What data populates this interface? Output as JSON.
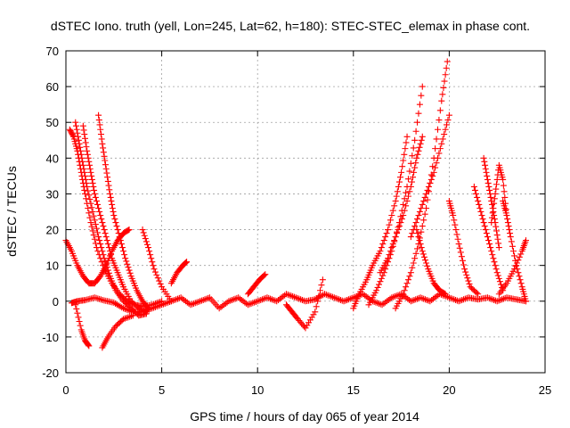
{
  "chart_data": {
    "type": "scatter",
    "title": "dSTEC Iono. truth (yell, Lon=245, Lat=62, h=180): STEC-STEC_elemax in phase cont.",
    "xlabel": "GPS time / hours of day 065 of year 2014",
    "ylabel": "dSTEC  / TECUs",
    "xlim": [
      0,
      25
    ],
    "ylim": [
      -20,
      70
    ],
    "xticks": [
      0,
      5,
      10,
      15,
      20,
      25
    ],
    "yticks": [
      -20,
      -10,
      0,
      10,
      20,
      30,
      40,
      50,
      60,
      70
    ],
    "xtick_labels": [
      "0",
      "5",
      "10",
      "15",
      "20",
      "25"
    ],
    "ytick_labels": [
      "-20",
      "-10",
      "0",
      "10",
      "20",
      "30",
      "40",
      "50",
      "60",
      "70"
    ],
    "grid": true,
    "marker": "plus",
    "color": "#ff0000",
    "series": [
      {
        "x": [
          0.3,
          0.6,
          1.0,
          1.5,
          2.0,
          2.5,
          3.0,
          3.5,
          4.0,
          4.5,
          5.0,
          5.5,
          6.0,
          6.5,
          7.0,
          7.5,
          8.0,
          8.5,
          9.0,
          9.5,
          10.0,
          10.5,
          11.0,
          11.5,
          12.0,
          12.5,
          13.0,
          13.5,
          14.0,
          14.5,
          15.0,
          15.5,
          16.0,
          16.5,
          17.0,
          17.5,
          18.0,
          18.5,
          19.0,
          19.5,
          20.0,
          20.5,
          21.0,
          21.5,
          22.0,
          22.5,
          23.0,
          23.5,
          24.0
        ],
        "y": [
          -0.5,
          0,
          0.3,
          1,
          0.2,
          -0.4,
          -2,
          -3,
          -3,
          -2,
          -1,
          0,
          1,
          -1,
          0,
          1,
          -2,
          0,
          1,
          -1,
          0,
          1,
          0,
          2,
          1,
          0,
          0.5,
          2,
          1,
          0,
          1,
          2,
          0,
          -1,
          1,
          2,
          0,
          1,
          0,
          2,
          1,
          0,
          1,
          0.5,
          1,
          0,
          1,
          0.5,
          0
        ]
      },
      {
        "x": [
          0.2,
          0.4,
          0.6,
          0.8,
          1.0,
          1.3,
          1.6,
          2.0,
          2.4,
          2.8,
          3.2,
          3.6,
          4.0,
          4.5,
          5.0
        ],
        "y": [
          48,
          46,
          42,
          36,
          30,
          22,
          15,
          9,
          5,
          2,
          0,
          -1,
          -1.5,
          -1,
          0
        ]
      },
      {
        "x": [
          0.5,
          0.7,
          0.9,
          1.1,
          1.4,
          1.7,
          2.0,
          2.3,
          2.6,
          3.0,
          3.4,
          3.8,
          4.2
        ],
        "y": [
          50,
          44,
          38,
          32,
          25,
          18,
          12,
          7,
          3,
          0,
          -2,
          -4,
          -3.5
        ]
      },
      {
        "x": [
          0.9,
          1.1,
          1.3,
          1.5,
          1.8,
          2.1,
          2.4,
          2.7,
          3.0,
          3.4,
          3.8,
          4.2
        ],
        "y": [
          49,
          42,
          36,
          30,
          24,
          18,
          12,
          8,
          4,
          0,
          -2,
          -3
        ]
      },
      {
        "x": [
          1.7,
          1.9,
          2.1,
          2.3,
          2.5,
          2.8,
          3.1,
          3.4,
          3.7,
          4.0,
          4.3
        ],
        "y": [
          52,
          44,
          37,
          30,
          24,
          18,
          12,
          7,
          3,
          0,
          -2
        ]
      },
      {
        "x": [
          0.0,
          0.3,
          0.6,
          0.9,
          1.2,
          1.5,
          1.8,
          2.1,
          2.4,
          2.7,
          3.0,
          3.3
        ],
        "y": [
          17,
          14,
          10,
          7,
          5,
          5,
          7,
          10,
          14,
          17,
          19,
          20
        ]
      },
      {
        "x": [
          0.5,
          0.8,
          1.0,
          1.2
        ],
        "y": [
          -1,
          -8,
          -11,
          -12.5
        ]
      },
      {
        "x": [
          1.9,
          2.2,
          2.6,
          3.0,
          3.5
        ],
        "y": [
          -13,
          -10,
          -7,
          -5,
          -4
        ]
      },
      {
        "x": [
          4.0,
          4.3,
          4.6,
          5.0,
          5.5
        ],
        "y": [
          20,
          15,
          9,
          4,
          0
        ]
      },
      {
        "x": [
          5.5,
          5.8,
          6.1,
          6.3
        ],
        "y": [
          5,
          8,
          10,
          11
        ]
      },
      {
        "x": [
          9.5,
          9.8,
          10.1,
          10.4
        ],
        "y": [
          2,
          4,
          6,
          7.5
        ]
      },
      {
        "x": [
          11.5,
          11.8,
          12.1,
          12.5,
          13.0,
          13.4
        ],
        "y": [
          -1,
          -3,
          -5,
          -7.5,
          -3,
          6
        ]
      },
      {
        "x": [
          15.0,
          15.3,
          15.7,
          16.0,
          16.4,
          16.8,
          17.2,
          17.5,
          17.8
        ],
        "y": [
          -2,
          2,
          6,
          10,
          14,
          20,
          28,
          36,
          46
        ]
      },
      {
        "x": [
          15.8,
          16.2,
          16.6,
          17.0,
          17.4,
          17.8,
          18.2,
          18.6
        ],
        "y": [
          -1,
          3,
          8,
          14,
          22,
          32,
          45,
          60
        ]
      },
      {
        "x": [
          16.4,
          16.8,
          17.2,
          17.6,
          18.0,
          18.3,
          18.6
        ],
        "y": [
          8,
          12,
          18,
          24,
          32,
          40,
          46
        ]
      },
      {
        "x": [
          17.2,
          17.6,
          18.0,
          18.4,
          18.8,
          19.2,
          19.6,
          19.9
        ],
        "y": [
          -2,
          2,
          8,
          16,
          26,
          40,
          56,
          67
        ]
      },
      {
        "x": [
          18.0,
          18.4,
          18.8,
          19.2,
          19.6,
          20.0
        ],
        "y": [
          18,
          24,
          30,
          36,
          44,
          52
        ]
      },
      {
        "x": [
          18.3,
          18.6,
          18.9,
          19.2,
          19.5,
          19.8
        ],
        "y": [
          20,
          14,
          9,
          5,
          3,
          2
        ]
      },
      {
        "x": [
          20.0,
          20.2,
          20.5,
          20.8,
          21.1,
          21.5
        ],
        "y": [
          28,
          24,
          16,
          9,
          4,
          2
        ]
      },
      {
        "x": [
          21.3,
          21.6,
          21.9,
          22.2,
          22.5,
          22.8
        ],
        "y": [
          32,
          26,
          20,
          14,
          8,
          3
        ]
      },
      {
        "x": [
          21.8,
          22.0,
          22.2,
          22.4,
          22.6
        ],
        "y": [
          40,
          34,
          28,
          22,
          15
        ]
      },
      {
        "x": [
          22.2,
          22.4,
          22.6,
          22.8,
          23.0
        ],
        "y": [
          22,
          30,
          38,
          34,
          24
        ]
      },
      {
        "x": [
          22.8,
          23.0,
          23.2,
          23.5,
          23.8,
          24.0
        ],
        "y": [
          28,
          24,
          18,
          10,
          4,
          0
        ]
      },
      {
        "x": [
          22.6,
          23.0,
          23.4,
          23.8,
          24.0
        ],
        "y": [
          2,
          5,
          9,
          14,
          17
        ]
      }
    ]
  }
}
